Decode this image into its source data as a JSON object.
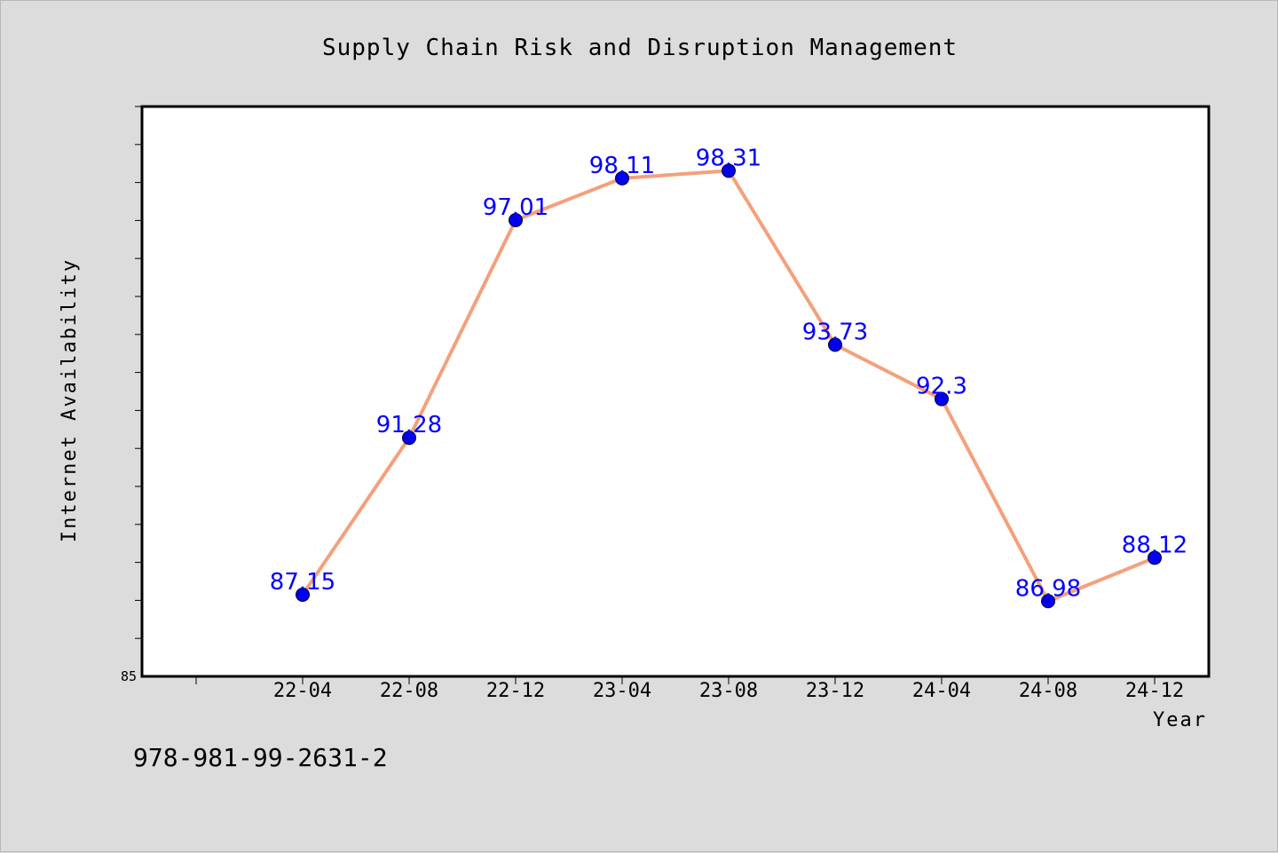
{
  "chart_data": {
    "type": "line",
    "title": "Supply Chain Risk and Disruption Management",
    "xlabel": "Year",
    "ylabel": "Internet Availability",
    "categories": [
      "22-04",
      "22-08",
      "22-12",
      "23-04",
      "23-08",
      "23-12",
      "24-04",
      "24-08",
      "24-12"
    ],
    "series": [
      {
        "values": [
          87.15,
          91.28,
          97.01,
          98.11,
          98.31,
          93.73,
          92.3,
          86.98,
          88.12
        ],
        "line_color": "#f4a07c",
        "marker_color": "#0000ee",
        "label_color": "#0000ff"
      }
    ],
    "ylim": [
      85,
      100
    ],
    "yticks_labeled": [
      "85"
    ],
    "grid": false,
    "legend": "none",
    "background": "#dcdcdc",
    "plot_background": "#ffffff"
  },
  "footer": {
    "isbn": "978-981-99-2631-2"
  }
}
